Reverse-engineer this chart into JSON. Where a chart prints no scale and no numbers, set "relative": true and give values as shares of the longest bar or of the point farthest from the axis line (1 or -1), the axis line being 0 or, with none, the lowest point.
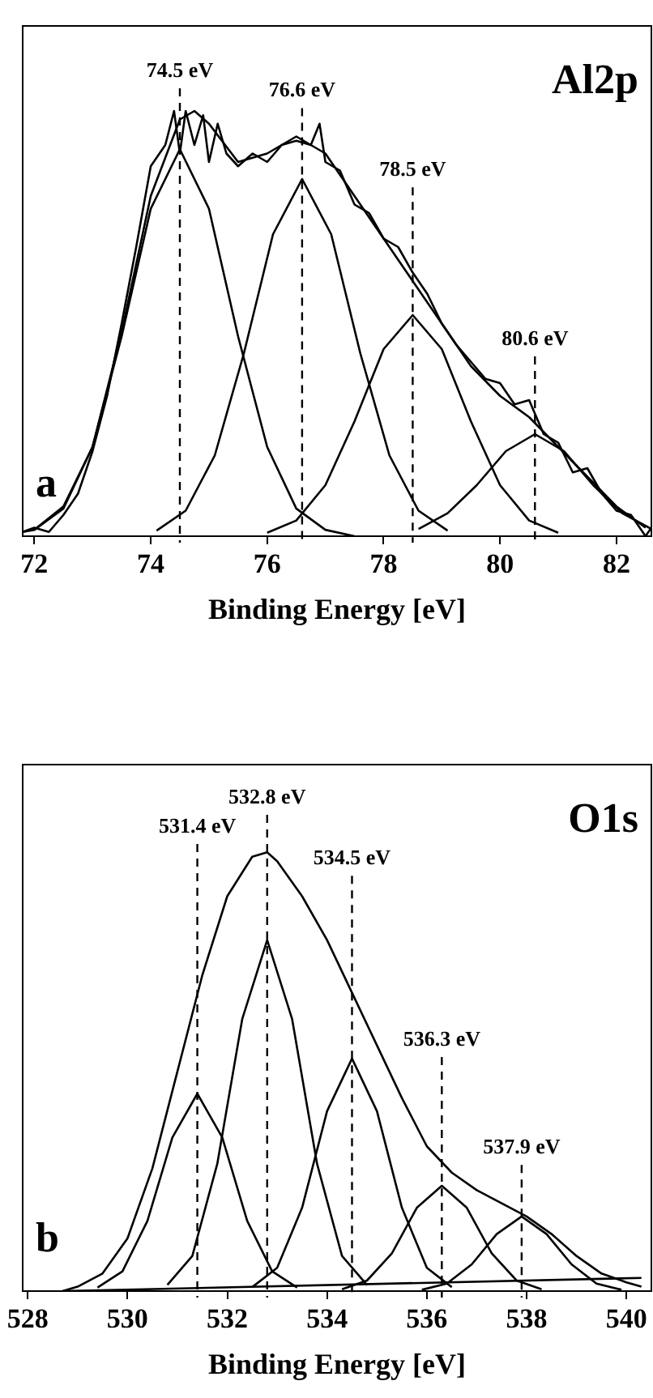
{
  "chart_data": [
    {
      "type": "line",
      "title": "Al2p",
      "xlabel": "Binding Energy [eV]",
      "relative": true,
      "xlim": [
        71.8,
        82.6
      ],
      "xticks": [
        72,
        74,
        76,
        78,
        80,
        82
      ],
      "grid": false,
      "legend": false,
      "annotations": [
        "a"
      ],
      "series": [
        {
          "color": "#000000",
          "x": [
            71.8,
            72,
            72.25,
            72.5,
            72.75,
            73,
            73.25,
            73.5,
            73.75,
            74,
            74.25,
            74.4,
            74.5,
            74.6,
            74.75,
            74.9,
            75,
            75.15,
            75.3,
            75.5,
            75.75,
            76,
            76.25,
            76.5,
            76.75,
            76.9,
            77,
            77.25,
            77.5,
            77.75,
            78,
            78.25,
            78.5,
            78.75,
            79,
            79.25,
            79.5,
            79.75,
            80,
            80.25,
            80.5,
            80.75,
            81,
            81.25,
            81.5,
            81.75,
            82,
            82.25,
            82.5,
            82.6
          ],
          "values": [
            0.01,
            0.02,
            0.01,
            0.05,
            0.1,
            0.2,
            0.33,
            0.5,
            0.68,
            0.87,
            0.92,
            1.0,
            0.9,
            1.0,
            0.92,
            0.99,
            0.88,
            0.97,
            0.9,
            0.87,
            0.9,
            0.88,
            0.92,
            0.93,
            0.92,
            0.97,
            0.88,
            0.86,
            0.78,
            0.76,
            0.7,
            0.68,
            0.62,
            0.57,
            0.5,
            0.45,
            0.41,
            0.37,
            0.36,
            0.31,
            0.32,
            0.24,
            0.22,
            0.15,
            0.16,
            0.1,
            0.06,
            0.05,
            0.0,
            0.02
          ]
        },
        {
          "color": "#000000",
          "x": [
            71.8,
            72,
            72.5,
            73,
            73.5,
            74,
            74.5,
            74.75,
            75,
            75.5,
            76,
            76.5,
            77,
            77.5,
            78,
            78.5,
            79,
            79.5,
            80,
            80.5,
            81,
            81.5,
            82,
            82.5
          ],
          "values": [
            0.01,
            0.015,
            0.07,
            0.21,
            0.48,
            0.8,
            0.98,
            1.0,
            0.97,
            0.88,
            0.9,
            0.94,
            0.9,
            0.8,
            0.7,
            0.6,
            0.5,
            0.4,
            0.33,
            0.28,
            0.21,
            0.14,
            0.07,
            0.02
          ]
        },
        {
          "color": "#000000",
          "x": [
            72,
            72.5,
            73,
            73.5,
            74,
            74.5,
            75,
            75.5,
            76,
            76.5,
            77,
            77.5
          ],
          "values": [
            0.015,
            0.065,
            0.21,
            0.47,
            0.77,
            0.91,
            0.77,
            0.47,
            0.21,
            0.065,
            0.015,
            0
          ]
        },
        {
          "color": "#000000",
          "x": [
            74.1,
            74.6,
            75.1,
            75.6,
            76.1,
            76.6,
            77.1,
            77.6,
            78.1,
            78.6,
            79.1
          ],
          "values": [
            0.013,
            0.06,
            0.19,
            0.43,
            0.71,
            0.84,
            0.71,
            0.43,
            0.19,
            0.06,
            0.013
          ]
        },
        {
          "color": "#000000",
          "x": [
            76,
            76.5,
            77,
            77.5,
            78,
            78.5,
            79,
            79.5,
            80,
            80.5,
            81
          ],
          "values": [
            0.008,
            0.037,
            0.12,
            0.27,
            0.44,
            0.52,
            0.44,
            0.27,
            0.12,
            0.037,
            0.008
          ]
        },
        {
          "color": "#000000",
          "x": [
            78.6,
            79.1,
            79.6,
            80.1,
            80.6,
            81.1,
            81.6,
            82.1,
            82.6
          ],
          "values": [
            0.017,
            0.054,
            0.12,
            0.2,
            0.24,
            0.2,
            0.12,
            0.054,
            0.017
          ]
        }
      ],
      "ref_lines": [
        {
          "axis": "x",
          "value": 74.5,
          "label": "74.5 eV",
          "line_style": "dashed"
        },
        {
          "axis": "x",
          "value": 76.6,
          "label": "76.6 eV",
          "line_style": "dashed"
        },
        {
          "axis": "x",
          "value": 78.5,
          "label": "78.5 eV",
          "line_style": "dashed"
        },
        {
          "axis": "x",
          "value": 80.6,
          "label": "80.6 eV",
          "line_style": "dashed"
        }
      ]
    },
    {
      "type": "line",
      "title": "O1s",
      "xlabel": "Binding Energy [eV]",
      "relative": true,
      "xlim": [
        527.9,
        540.5
      ],
      "xticks": [
        528,
        530,
        532,
        534,
        536,
        538,
        540
      ],
      "grid": false,
      "legend": false,
      "annotations": [
        "b"
      ],
      "series": [
        {
          "color": "#000000",
          "x": [
            528.7,
            529,
            529.5,
            530,
            530.5,
            531,
            531.5,
            532,
            532.5,
            532.8,
            533,
            533.5,
            534,
            534.5,
            535,
            535.5,
            536,
            536.5,
            537,
            537.5,
            538,
            538.5,
            539,
            539.5,
            540,
            540.3
          ],
          "values": [
            0.0,
            0.01,
            0.04,
            0.12,
            0.28,
            0.5,
            0.72,
            0.9,
            0.99,
            1.0,
            0.98,
            0.9,
            0.8,
            0.68,
            0.56,
            0.44,
            0.33,
            0.27,
            0.23,
            0.2,
            0.17,
            0.13,
            0.08,
            0.04,
            0.02,
            0.01
          ]
        },
        {
          "color": "#000000",
          "x": [
            529.4,
            529.9,
            530.4,
            530.9,
            531.4,
            531.9,
            532.4,
            532.9,
            533.4
          ],
          "values": [
            0.008,
            0.045,
            0.16,
            0.35,
            0.45,
            0.35,
            0.16,
            0.045,
            0.008
          ]
        },
        {
          "color": "#000000",
          "x": [
            530.8,
            531.3,
            531.8,
            532.3,
            532.8,
            533.3,
            533.8,
            534.3,
            534.8
          ],
          "values": [
            0.014,
            0.08,
            0.29,
            0.62,
            0.8,
            0.62,
            0.29,
            0.08,
            0.014
          ]
        },
        {
          "color": "#000000",
          "x": [
            532.5,
            533,
            533.5,
            534,
            534.5,
            535,
            535.5,
            536,
            536.5
          ],
          "values": [
            0.009,
            0.053,
            0.19,
            0.41,
            0.53,
            0.41,
            0.19,
            0.053,
            0.009
          ]
        },
        {
          "color": "#000000",
          "x": [
            534.3,
            534.8,
            535.3,
            535.8,
            536.3,
            536.8,
            537.3,
            537.8,
            538.3
          ],
          "values": [
            0.004,
            0.024,
            0.086,
            0.19,
            0.24,
            0.19,
            0.086,
            0.024,
            0.004
          ]
        },
        {
          "color": "#000000",
          "x": [
            535.9,
            536.4,
            536.9,
            537.4,
            537.9,
            538.4,
            538.9,
            539.4,
            539.9
          ],
          "values": [
            0.003,
            0.017,
            0.061,
            0.13,
            0.17,
            0.13,
            0.061,
            0.017,
            0.003
          ]
        },
        {
          "color": "#000000",
          "x": [
            528.7,
            540.3
          ],
          "values": [
            0.0,
            0.03
          ]
        }
      ],
      "ref_lines": [
        {
          "axis": "x",
          "value": 531.4,
          "label": "531.4 eV",
          "line_style": "dashed"
        },
        {
          "axis": "x",
          "value": 532.8,
          "label": "532.8 eV",
          "line_style": "dashed"
        },
        {
          "axis": "x",
          "value": 534.5,
          "label": "534.5 eV",
          "line_style": "dashed"
        },
        {
          "axis": "x",
          "value": 536.3,
          "label": "536.3 eV",
          "line_style": "dashed"
        },
        {
          "axis": "x",
          "value": 537.9,
          "label": "537.9 eV",
          "line_style": "dashed"
        }
      ]
    }
  ]
}
